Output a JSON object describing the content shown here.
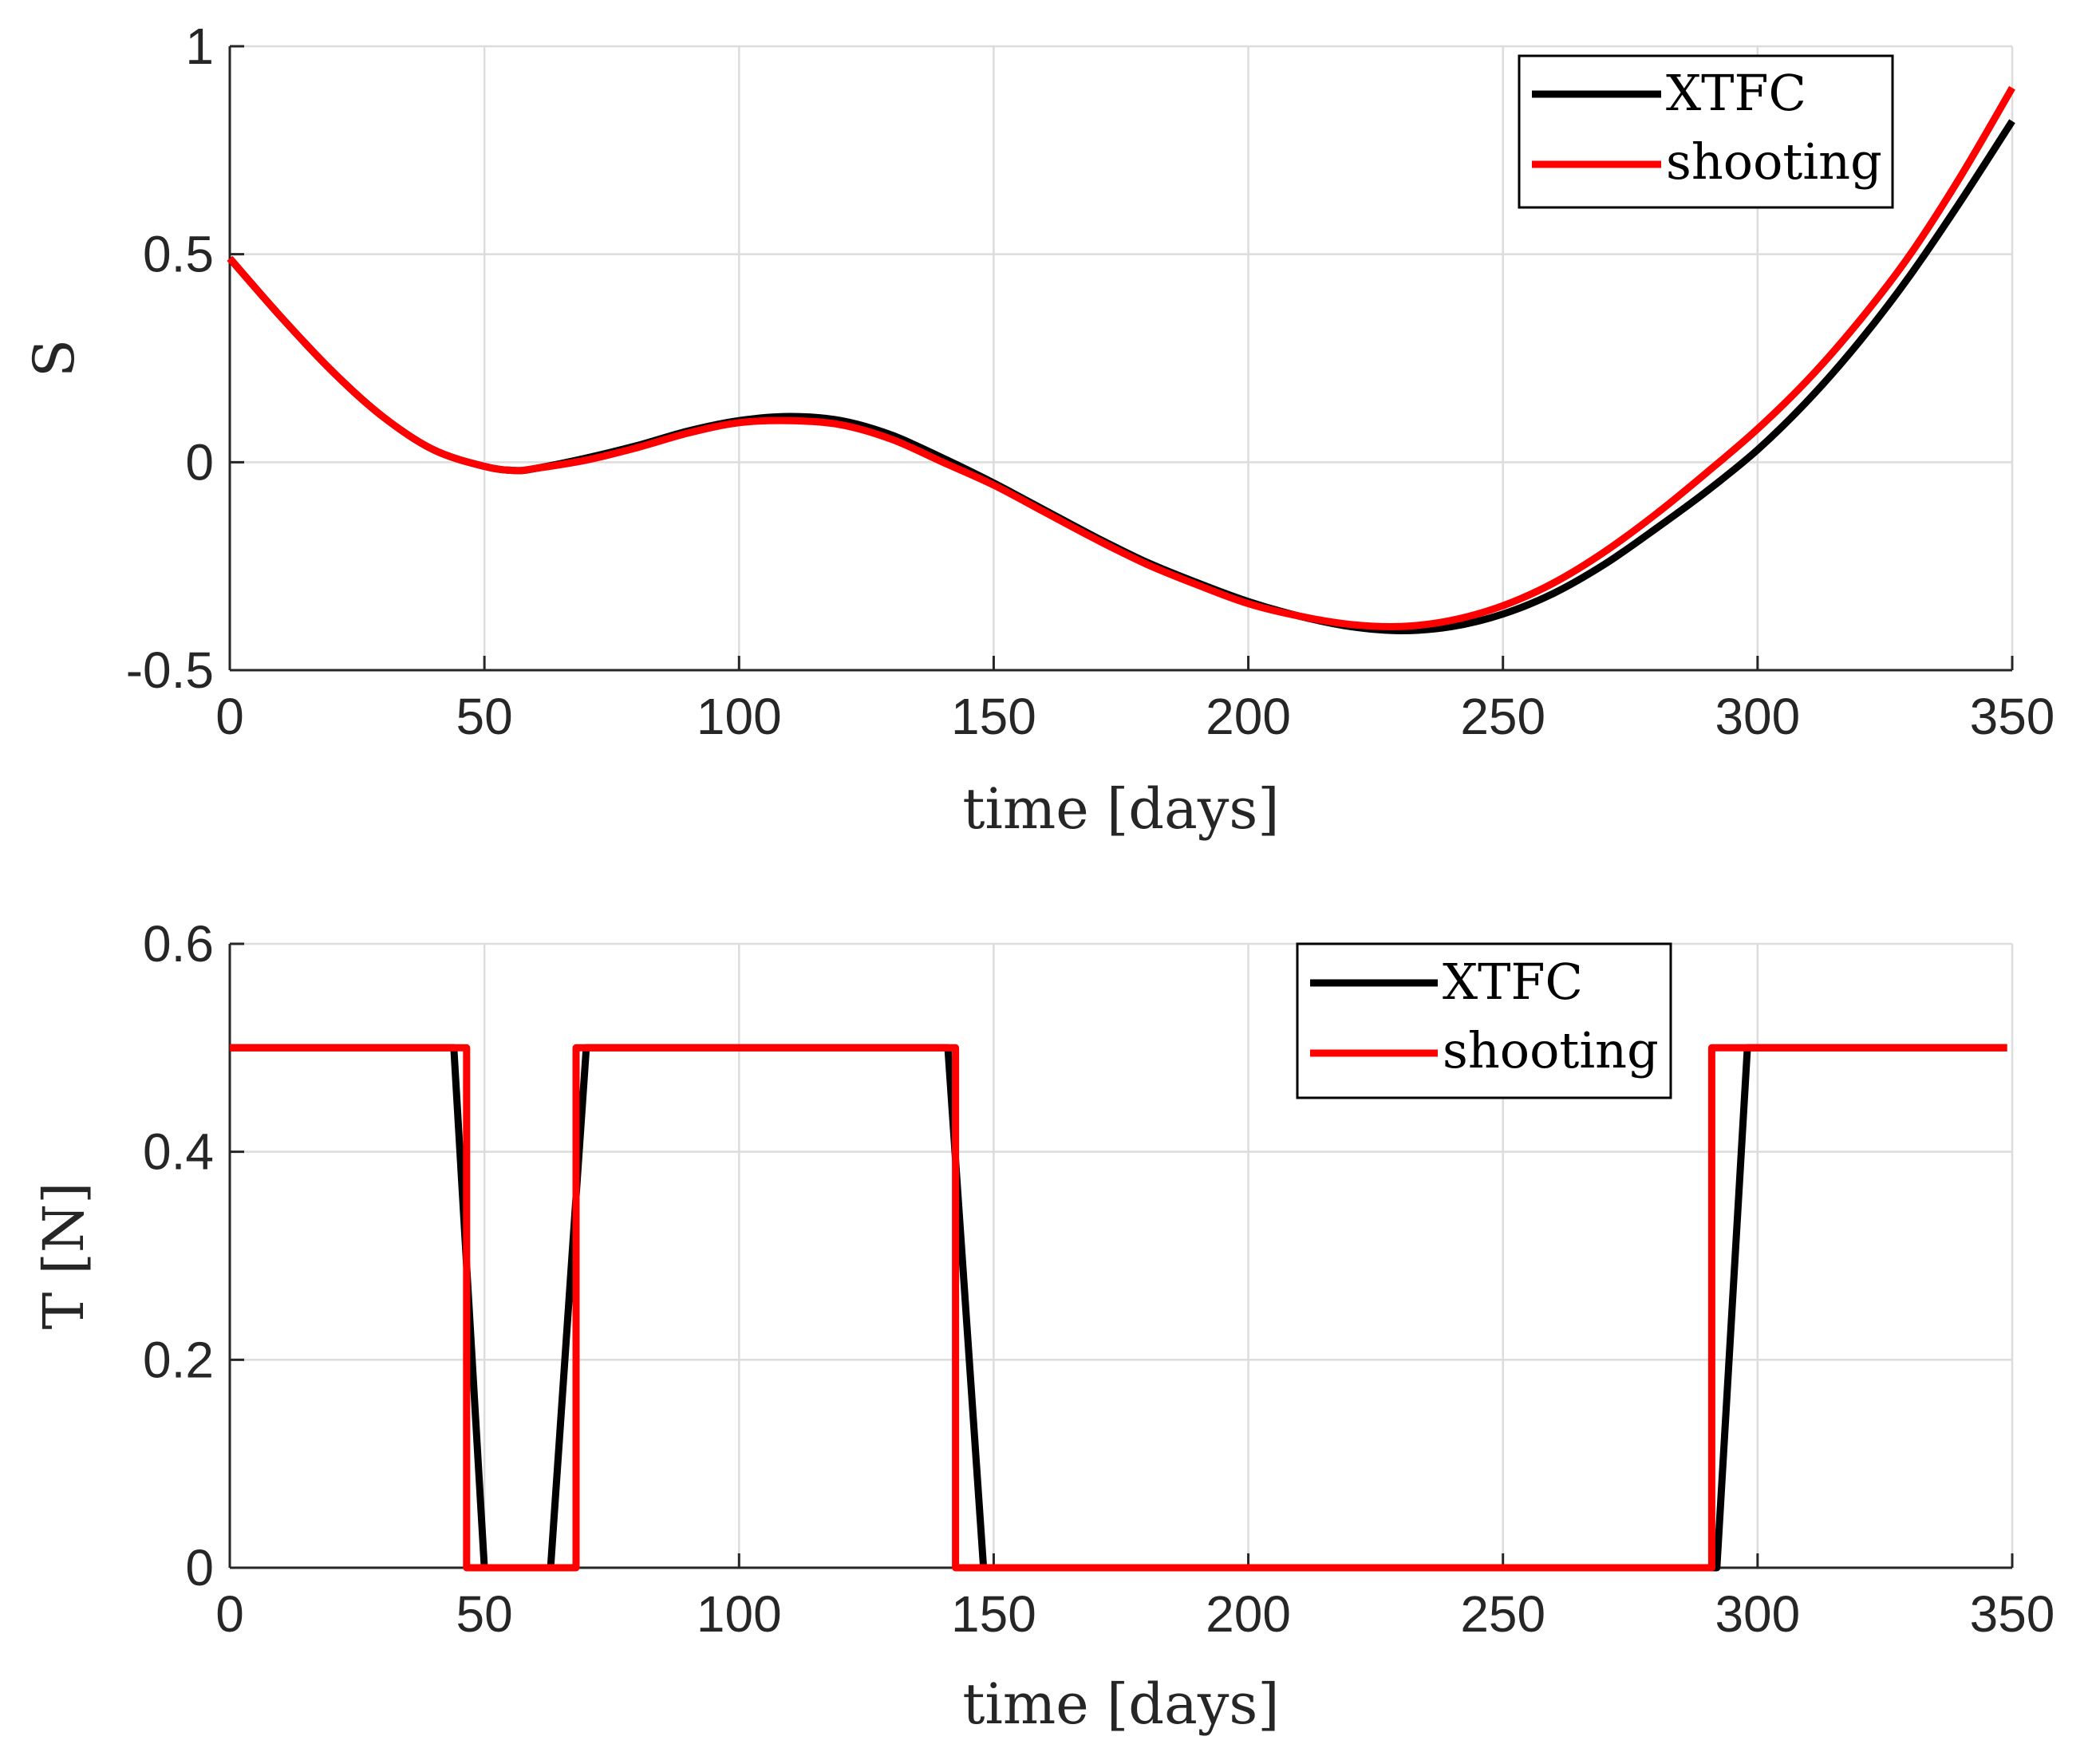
{
  "chart_data": [
    {
      "type": "line",
      "xlabel": "time [days]",
      "ylabel": "S",
      "xlim": [
        0,
        350
      ],
      "ylim": [
        -0.5,
        1
      ],
      "xticks": [
        0,
        50,
        100,
        150,
        200,
        250,
        300,
        350
      ],
      "xtick_labels": [
        "0",
        "50",
        "100",
        "150",
        "200",
        "250",
        "300",
        "350"
      ],
      "yticks": [
        -0.5,
        0,
        0.5,
        1
      ],
      "ytick_labels": [
        "-0.5",
        "0",
        "0.5",
        "1"
      ],
      "grid": true,
      "legend_position": "top-right",
      "series": [
        {
          "name": "XTFC",
          "color": "#000000",
          "x": [
            0,
            10,
            20,
            30,
            40,
            50,
            56,
            60,
            70,
            80,
            90,
            100,
            110,
            120,
            130,
            140,
            150,
            160,
            170,
            180,
            190,
            200,
            210,
            220,
            230,
            240,
            250,
            260,
            270,
            280,
            290,
            300,
            310,
            320,
            330,
            340,
            350
          ],
          "y": [
            0.49,
            0.35,
            0.22,
            0.11,
            0.03,
            -0.01,
            -0.02,
            -0.015,
            0.01,
            0.04,
            0.075,
            0.1,
            0.11,
            0.1,
            0.065,
            0.01,
            -0.05,
            -0.115,
            -0.18,
            -0.24,
            -0.29,
            -0.335,
            -0.37,
            -0.395,
            -0.405,
            -0.395,
            -0.365,
            -0.315,
            -0.245,
            -0.16,
            -0.07,
            0.03,
            0.15,
            0.29,
            0.45,
            0.63,
            0.82
          ]
        },
        {
          "name": "shooting",
          "color": "#ff0000",
          "x": [
            0,
            10,
            20,
            30,
            40,
            50,
            56,
            60,
            70,
            80,
            90,
            100,
            110,
            120,
            130,
            140,
            150,
            160,
            170,
            180,
            190,
            200,
            210,
            220,
            230,
            240,
            250,
            260,
            270,
            280,
            290,
            300,
            310,
            320,
            330,
            340,
            350
          ],
          "y": [
            0.49,
            0.35,
            0.22,
            0.11,
            0.03,
            -0.01,
            -0.02,
            -0.015,
            0.005,
            0.035,
            0.07,
            0.095,
            0.1,
            0.09,
            0.055,
            0.0,
            -0.055,
            -0.12,
            -0.185,
            -0.245,
            -0.295,
            -0.34,
            -0.37,
            -0.39,
            -0.395,
            -0.38,
            -0.345,
            -0.29,
            -0.215,
            -0.125,
            -0.025,
            0.08,
            0.2,
            0.34,
            0.5,
            0.69,
            0.9
          ]
        }
      ]
    },
    {
      "type": "line",
      "xlabel": "time [days]",
      "ylabel": "T [N]",
      "xlim": [
        0,
        350
      ],
      "ylim": [
        0,
        0.6
      ],
      "xticks": [
        0,
        50,
        100,
        150,
        200,
        250,
        300,
        350
      ],
      "xtick_labels": [
        "0",
        "50",
        "100",
        "150",
        "200",
        "250",
        "300",
        "350"
      ],
      "yticks": [
        0,
        0.2,
        0.4,
        0.6
      ],
      "ytick_labels": [
        "0",
        "0.2",
        "0.4",
        "0.6"
      ],
      "grid": true,
      "legend_position": "top-right",
      "series": [
        {
          "name": "XTFC",
          "color": "#000000",
          "x": [
            0,
            44,
            50,
            63,
            70,
            141,
            148,
            292,
            298,
            349
          ],
          "y": [
            0.5,
            0.5,
            0,
            0,
            0.5,
            0.5,
            0,
            0,
            0.5,
            0.5
          ]
        },
        {
          "name": "shooting",
          "color": "#ff0000",
          "x": [
            0,
            46.5,
            46.5,
            68,
            68,
            142.5,
            142.5,
            291,
            291,
            349
          ],
          "y": [
            0.5,
            0.5,
            0,
            0,
            0.5,
            0.5,
            0,
            0,
            0.5,
            0.5
          ]
        }
      ]
    }
  ]
}
